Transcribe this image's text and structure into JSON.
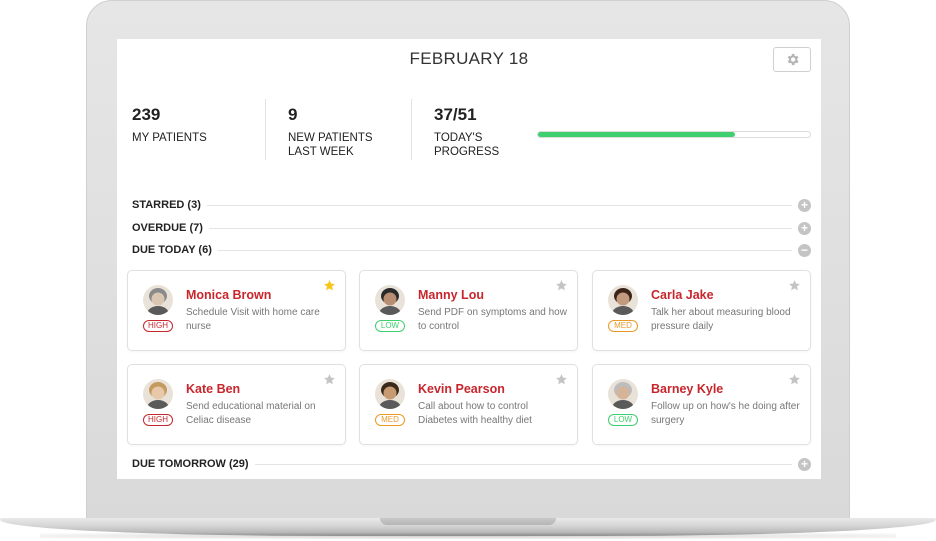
{
  "header": {
    "date": "FEBRUARY 18",
    "settings_icon": "gear-icon"
  },
  "stats": [
    {
      "value": "239",
      "label": "MY PATIENTS"
    },
    {
      "value": "9",
      "label": "NEW PATIENTS LAST WEEK"
    },
    {
      "value": "37/51",
      "label": "TODAY'S PROGRESS"
    }
  ],
  "progress": {
    "done": 37,
    "total": 51,
    "color": "#3ecf6e"
  },
  "sections": {
    "starred": {
      "label": "STARRED (3)",
      "toggle": "+"
    },
    "overdue": {
      "label": "OVERDUE (7)",
      "toggle": "+"
    },
    "due_today": {
      "label": "DUE TODAY (6)",
      "toggle": "−"
    },
    "due_tomorrow": {
      "label": "DUE TOMORROW (29)",
      "toggle": "+"
    }
  },
  "patients": [
    {
      "name": "Monica Brown",
      "note": "Schedule Visit with home care nurse",
      "priority": "HIGH",
      "starred": true,
      "skin": "#d9c7b4",
      "hair": "#8a8a8a"
    },
    {
      "name": "Manny Lou",
      "note": "Send PDF on symptoms and how to control",
      "priority": "LOW",
      "starred": false,
      "skin": "#b98d72",
      "hair": "#2a2a2a"
    },
    {
      "name": "Carla Jake",
      "note": "Talk her about measuring blood pressure daily",
      "priority": "MED",
      "starred": false,
      "skin": "#c29a7e",
      "hair": "#3b2418"
    },
    {
      "name": "Kate Ben",
      "note": "Send educational material on Celiac disease",
      "priority": "HIGH",
      "starred": false,
      "skin": "#e7c8a8",
      "hair": "#c49a5e"
    },
    {
      "name": "Kevin Pearson",
      "note": "Call about how to control Diabetes with healthy diet",
      "priority": "MED",
      "starred": false,
      "skin": "#c79a72",
      "hair": "#3a2a1c"
    },
    {
      "name": "Barney Kyle",
      "note": "Follow up on how's he doing after surgery",
      "priority": "LOW",
      "starred": false,
      "skin": "#d6b49a",
      "hair": "#bdbdbd"
    }
  ],
  "colors": {
    "accent": "#c8262d",
    "high": "#c8262d",
    "med": "#e89a2b",
    "low": "#3ecf6e",
    "star_on": "#f5c518",
    "star_off": "#c4c4c4"
  }
}
